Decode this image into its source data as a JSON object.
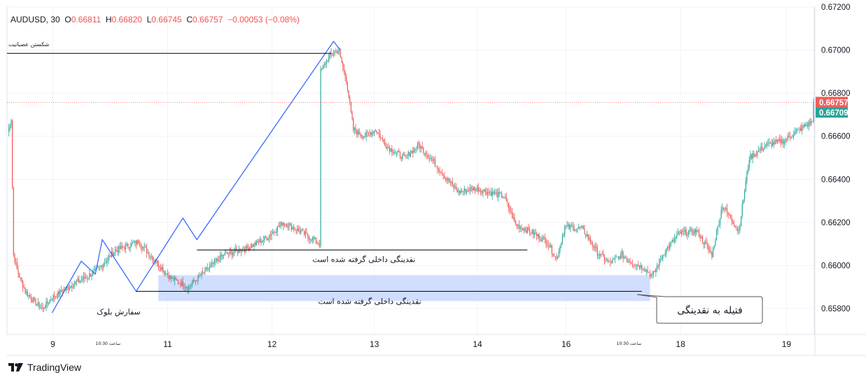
{
  "symbol_legend": {
    "symbol": "AUDUSD, 30",
    "open_label": "O",
    "open": "0.66811",
    "high_label": "H",
    "high": "0.66820",
    "low_label": "L",
    "low": "0.66745",
    "close_label": "C",
    "close": "0.66757",
    "change": "−0.00053 (−0.08%)"
  },
  "brand": {
    "name": "TradingView"
  },
  "colors": {
    "up": "#26a69a",
    "down": "#ef5350",
    "trend_line": "#2962ff",
    "zone": "#c9d8ff",
    "price_line": "#ef5350",
    "last_price_bg": "#f0605d",
    "alt_price_bg": "#26a69a",
    "grid": "#f0f3fa"
  },
  "chart_data": {
    "type": "candlestick",
    "symbol": "AUDUSD",
    "timeframe": "30",
    "ylim": [
      0.6568,
      0.672
    ],
    "y_ticks": [
      "0.67200",
      "0.67000",
      "0.66800",
      "0.66600",
      "0.66400",
      "0.66200",
      "0.66000",
      "0.65800"
    ],
    "x_ticks": [
      "9",
      "11",
      "12",
      "13",
      "14",
      "16",
      "18",
      "19"
    ],
    "time_marks": [
      "10:30 ساعت",
      "10:30 ساعت"
    ],
    "price_labels": [
      {
        "value": "0.66757",
        "kind": "last"
      },
      {
        "value": "0.66709",
        "kind": "alt"
      }
    ],
    "grid": true,
    "annotations": [
      {
        "text": "شکستن عصبانیت",
        "kind": "level",
        "price": 0.66985
      },
      {
        "text": "نقدینگی داخلی گرفته شده است",
        "kind": "level",
        "price": 0.66072
      },
      {
        "text": "نقدینگی داخلی گرفته شده است",
        "kind": "level",
        "price": 0.6588
      },
      {
        "text": "سفارش بلوک",
        "kind": "zone",
        "price_top": 0.65955,
        "price_bottom": 0.65835
      },
      {
        "text": "فتیله به نقدینگی",
        "kind": "callout",
        "price": 0.65865
      }
    ],
    "close_path_anchors": [
      [
        0,
        0.6662
      ],
      [
        3,
        0.6668
      ],
      [
        5,
        0.6605
      ],
      [
        8,
        0.6598
      ],
      [
        15,
        0.6588
      ],
      [
        25,
        0.6582
      ],
      [
        30,
        0.658
      ],
      [
        38,
        0.6585
      ],
      [
        55,
        0.6591
      ],
      [
        75,
        0.6597
      ],
      [
        92,
        0.6607
      ],
      [
        112,
        0.6611
      ],
      [
        125,
        0.6603
      ],
      [
        140,
        0.6594
      ],
      [
        155,
        0.659
      ],
      [
        168,
        0.6597
      ],
      [
        185,
        0.6605
      ],
      [
        205,
        0.6608
      ],
      [
        222,
        0.6613
      ],
      [
        236,
        0.662
      ],
      [
        250,
        0.6616
      ],
      [
        262,
        0.6612
      ],
      [
        267,
        0.661
      ],
      [
        268,
        0.669
      ],
      [
        275,
        0.6697
      ],
      [
        283,
        0.67
      ],
      [
        290,
        0.6686
      ],
      [
        296,
        0.6663
      ],
      [
        305,
        0.666
      ],
      [
        315,
        0.6663
      ],
      [
        325,
        0.6655
      ],
      [
        340,
        0.665
      ],
      [
        352,
        0.6656
      ],
      [
        365,
        0.6648
      ],
      [
        376,
        0.664
      ],
      [
        386,
        0.6634
      ],
      [
        400,
        0.6636
      ],
      [
        412,
        0.6634
      ],
      [
        425,
        0.6632
      ],
      [
        435,
        0.6619
      ],
      [
        450,
        0.6615
      ],
      [
        462,
        0.6611
      ],
      [
        470,
        0.6603
      ],
      [
        477,
        0.6618
      ],
      [
        492,
        0.6617
      ],
      [
        505,
        0.6606
      ],
      [
        515,
        0.6601
      ],
      [
        526,
        0.6605
      ],
      [
        532,
        0.6602
      ],
      [
        545,
        0.6599
      ],
      [
        552,
        0.6595
      ],
      [
        562,
        0.6606
      ],
      [
        575,
        0.6615
      ],
      [
        590,
        0.6616
      ],
      [
        603,
        0.6605
      ],
      [
        612,
        0.6628
      ],
      [
        626,
        0.6616
      ],
      [
        635,
        0.665
      ],
      [
        650,
        0.6656
      ],
      [
        665,
        0.6658
      ],
      [
        675,
        0.6662
      ],
      [
        683,
        0.6665
      ],
      [
        690,
        0.6667
      ]
    ],
    "candle_count": 691,
    "last_close": 0.66757
  }
}
